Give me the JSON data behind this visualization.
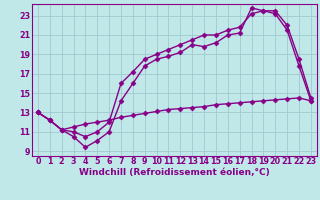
{
  "background_color": "#c0e8e8",
  "grid_color": "#a0c8d0",
  "line_color": "#880088",
  "marker": "D",
  "markersize": 2.5,
  "linewidth": 1.0,
  "xlabel": "Windchill (Refroidissement éolien,°C)",
  "xlabel_fontsize": 6.5,
  "tick_fontsize": 5.8,
  "xlim": [
    -0.5,
    23.5
  ],
  "ylim": [
    8.5,
    24.2
  ],
  "yticks": [
    9,
    11,
    13,
    15,
    17,
    19,
    21,
    23
  ],
  "xticks": [
    0,
    1,
    2,
    3,
    4,
    5,
    6,
    7,
    8,
    9,
    10,
    11,
    12,
    13,
    14,
    15,
    16,
    17,
    18,
    19,
    20,
    21,
    22,
    23
  ],
  "line1_x": [
    0,
    1,
    2,
    3,
    4,
    5,
    6,
    7,
    8,
    9,
    10,
    11,
    12,
    13,
    14,
    15,
    16,
    17,
    18,
    19,
    20,
    21,
    22,
    23
  ],
  "line1_y": [
    13.0,
    12.2,
    11.2,
    10.5,
    9.4,
    10.1,
    11.0,
    14.2,
    16.0,
    17.8,
    18.5,
    18.8,
    19.2,
    20.0,
    19.8,
    20.2,
    21.0,
    21.2,
    23.8,
    23.5,
    23.2,
    21.5,
    17.8,
    14.2
  ],
  "line2_x": [
    0,
    1,
    2,
    3,
    4,
    5,
    6,
    7,
    8,
    9,
    10,
    11,
    12,
    13,
    14,
    15,
    16,
    17,
    18,
    19,
    20,
    21,
    22,
    23
  ],
  "line2_y": [
    13.0,
    12.2,
    11.2,
    11.0,
    10.5,
    11.0,
    12.0,
    16.0,
    17.2,
    18.5,
    19.0,
    19.5,
    20.0,
    20.5,
    21.0,
    21.0,
    21.5,
    21.8,
    23.2,
    23.5,
    23.5,
    22.0,
    18.5,
    14.5
  ],
  "line3_x": [
    0,
    1,
    2,
    3,
    4,
    5,
    6,
    7,
    8,
    9,
    10,
    11,
    12,
    13,
    14,
    15,
    16,
    17,
    18,
    19,
    20,
    21,
    22,
    23
  ],
  "line3_y": [
    13.0,
    12.2,
    11.2,
    11.5,
    11.8,
    12.0,
    12.2,
    12.5,
    12.7,
    12.9,
    13.1,
    13.3,
    13.4,
    13.5,
    13.6,
    13.8,
    13.9,
    14.0,
    14.1,
    14.2,
    14.3,
    14.4,
    14.5,
    14.2
  ]
}
